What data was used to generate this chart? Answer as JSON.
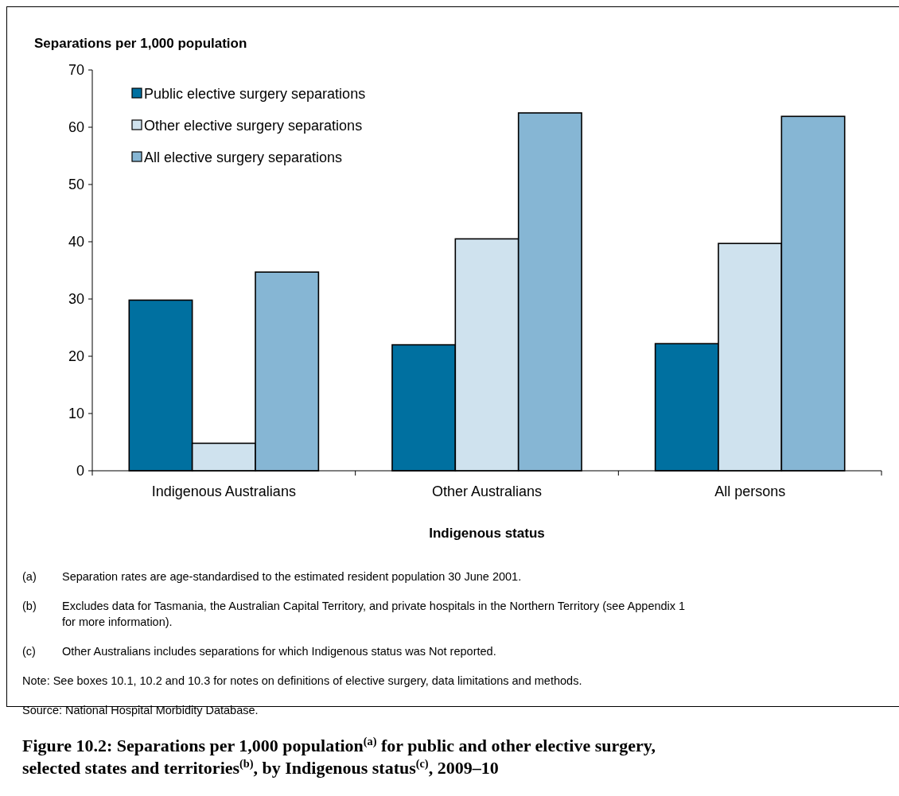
{
  "chart_data": {
    "type": "bar",
    "title": "Figure 10.2: Separations per 1,000 population$^{(a)}$ for public and other elective surgery, selected states and territories$^{(b)}$, by Indigenous status$^{(c)}$, 2009–10",
    "ylabel": "Separations per 1,000 population",
    "xlabel": "Indigenous status",
    "categories": [
      "Indigenous Australians",
      "Other Australians",
      "All persons"
    ],
    "series": [
      {
        "name": "Public elective surgery separations",
        "color": "#0070a0",
        "values": [
          29.8,
          22.0,
          22.2
        ]
      },
      {
        "name": "Other elective surgery separations",
        "color": "#cfe2ee",
        "values": [
          4.8,
          40.5,
          39.7
        ]
      },
      {
        "name": "All elective surgery separations",
        "color": "#86b6d4",
        "values": [
          34.7,
          62.5,
          61.9
        ]
      }
    ],
    "ylim": [
      0,
      70
    ],
    "yticks": [
      0,
      10,
      20,
      30,
      40,
      50,
      60,
      70
    ],
    "grid": false,
    "legend": "top left",
    "annotations": [
      "(a) Separation rates are age-standardised to the estimated resident population 30 June 2001.",
      "(b) Excludes data for Tasmania, the Australian Capital Territory, and private hospitals in the Northern Territory (see Appendix 1 for more information).",
      "(c) Other Australians includes separations for which Indigenous status was Not reported.",
      "Note: See boxes 10.1, 10.2 and 10.3 for notes on definitions of elective surgery, data limitations and methods.",
      "Source: National Hospital Morbidity Database."
    ]
  }
}
